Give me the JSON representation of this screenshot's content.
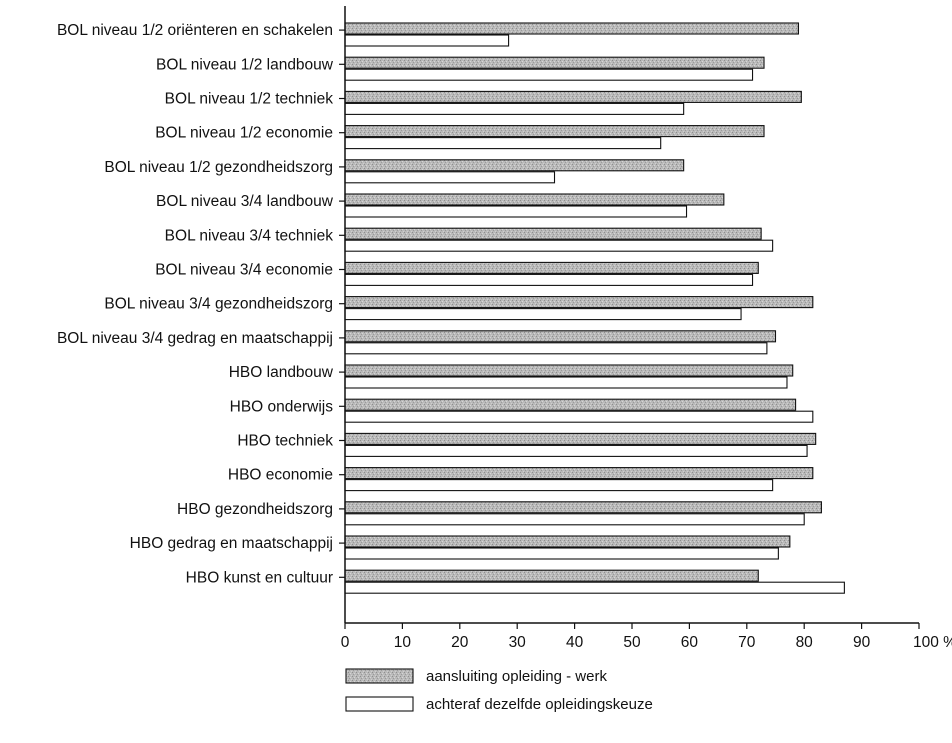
{
  "chart_data": {
    "type": "bar",
    "orientation": "horizontal",
    "categories": [
      "BOL niveau 1/2 oriënteren en schakelen",
      "BOL niveau 1/2 landbouw",
      "BOL niveau 1/2 techniek",
      "BOL niveau 1/2 economie",
      "BOL niveau 1/2 gezondheidszorg",
      "BOL niveau 3/4 landbouw",
      "BOL niveau 3/4 techniek",
      "BOL niveau 3/4 economie",
      "BOL niveau 3/4 gezondheidszorg",
      "BOL niveau 3/4 gedrag en maatschappij",
      "HBO landbouw",
      "HBO onderwijs",
      "HBO techniek",
      "HBO economie",
      "HBO gezondheidszorg",
      "HBO gedrag en maatschappij",
      "HBO kunst en cultuur"
    ],
    "series": [
      {
        "name": "aansluiting opleiding - werk",
        "color": "#b5b5b5",
        "values": [
          79,
          73,
          79.5,
          73,
          59,
          66,
          72.5,
          72,
          81.5,
          75,
          78,
          78.5,
          82,
          81.5,
          83,
          77.5,
          72
        ]
      },
      {
        "name": "achteraf dezelfde opleidingskeuze",
        "color": "#ffffff",
        "values": [
          28.5,
          71,
          59,
          55,
          36.5,
          59.5,
          74.5,
          71,
          69,
          73.5,
          77,
          81.5,
          80.5,
          74.5,
          80,
          75.5,
          87
        ]
      }
    ],
    "x_ticks": [
      "0",
      "10",
      "20",
      "30",
      "40",
      "50",
      "60",
      "70",
      "80",
      "90",
      "100 %"
    ],
    "xlim": [
      0,
      100
    ],
    "grid": false,
    "legend_position": "bottom"
  }
}
